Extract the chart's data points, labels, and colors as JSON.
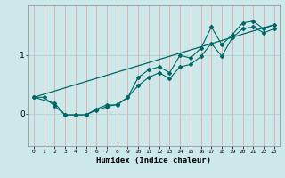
{
  "xlabel": "Humidex (Indice chaleur)",
  "ylabel": "",
  "bg_color": "#cce8e8",
  "grid_color_v": "#ee9999",
  "grid_color_h": "#aacccc",
  "line_color": "#006666",
  "xlim": [
    -0.5,
    23.5
  ],
  "ylim": [
    -0.55,
    1.85
  ],
  "xticks": [
    0,
    1,
    2,
    3,
    4,
    5,
    6,
    7,
    8,
    9,
    10,
    11,
    12,
    13,
    14,
    15,
    16,
    17,
    18,
    19,
    20,
    21,
    22,
    23
  ],
  "yticks": [
    0,
    1
  ],
  "series1": {
    "x": [
      0,
      1,
      2,
      3,
      4,
      5,
      6,
      7,
      8,
      9,
      10,
      11,
      12,
      13,
      14,
      15,
      16,
      17,
      18,
      19,
      20,
      21,
      22,
      23
    ],
    "y": [
      0.28,
      0.28,
      0.13,
      -0.02,
      -0.02,
      -0.02,
      0.06,
      0.12,
      0.16,
      0.28,
      0.48,
      0.62,
      0.7,
      0.6,
      0.8,
      0.84,
      0.98,
      1.2,
      0.98,
      1.3,
      1.45,
      1.48,
      1.38,
      1.45
    ]
  },
  "series2": {
    "x": [
      0,
      2,
      3,
      4,
      5,
      6,
      7,
      8,
      9,
      10,
      11,
      12,
      13,
      14,
      15,
      16,
      17,
      18,
      19,
      20,
      21,
      22,
      23
    ],
    "y": [
      0.28,
      0.18,
      -0.02,
      -0.02,
      -0.02,
      0.08,
      0.15,
      0.15,
      0.28,
      0.62,
      0.75,
      0.8,
      0.7,
      1.0,
      0.95,
      1.12,
      1.48,
      1.18,
      1.35,
      1.55,
      1.58,
      1.45,
      1.52
    ]
  },
  "series3_line": {
    "x": [
      0,
      23
    ],
    "y": [
      0.28,
      1.52
    ]
  }
}
